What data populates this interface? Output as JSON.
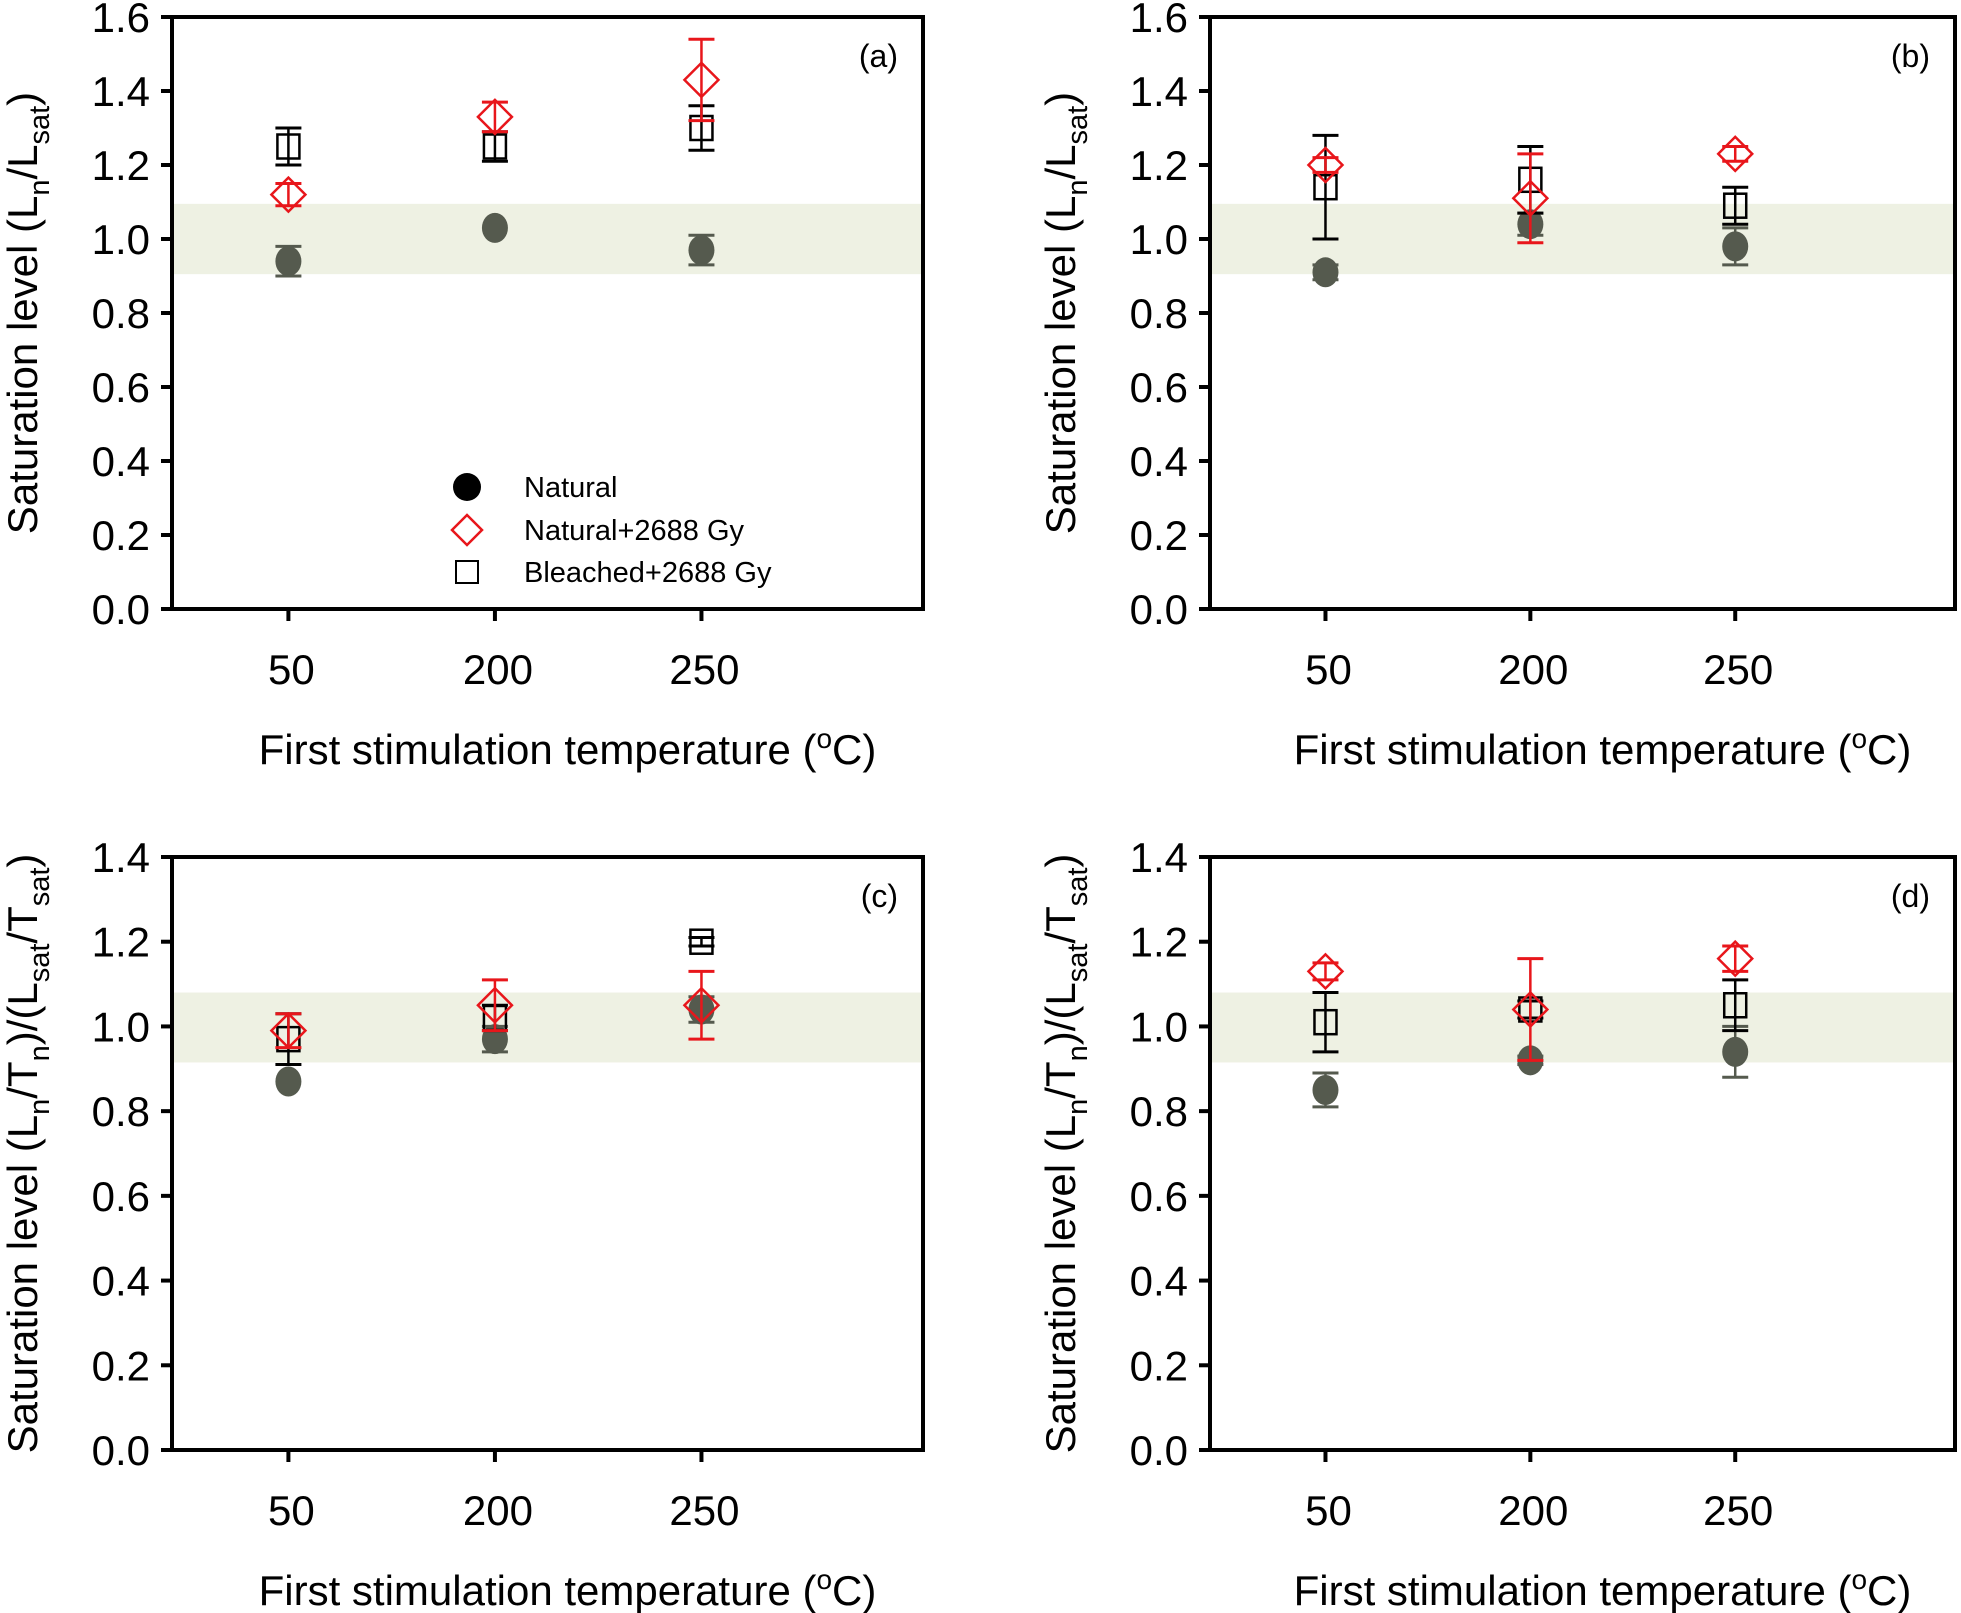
{
  "chart_data": [
    {
      "type": "scatter",
      "panel_label": "(a)",
      "xlabel": "First stimulation temperature (°C)",
      "xlabel_parts": {
        "pre": "First stimulation temperature (",
        "sup": "o",
        "post": "C)"
      },
      "ylabel_parts": [
        {
          "t": "Saturation level (L"
        },
        {
          "sub": "n"
        },
        {
          "t": "/L"
        },
        {
          "sub": "sat"
        },
        {
          "t": ")"
        }
      ],
      "ylabel": "Saturation level (Ln/Lsat)",
      "categories": [
        "50",
        "200",
        "250"
      ],
      "ylim": [
        0,
        1.6
      ],
      "yticks": [
        "0.0",
        "0.2",
        "0.4",
        "0.6",
        "0.8",
        "1.0",
        "1.2",
        "1.4",
        "1.6"
      ],
      "band": [
        0.905,
        1.095
      ],
      "legend": {
        "placement": "bottom-center",
        "show": true
      },
      "series": [
        {
          "name": "Natural",
          "marker": "circle",
          "values": [
            0.94,
            1.03,
            0.97
          ],
          "errors": [
            0.04,
            0.0,
            0.04
          ]
        },
        {
          "name": "Natural+2688 Gy",
          "marker": "diamond",
          "values": [
            1.12,
            1.33,
            1.43
          ],
          "errors": [
            0.03,
            0.04,
            0.11
          ]
        },
        {
          "name": "Bleached+2688 Gy",
          "marker": "square",
          "values": [
            1.25,
            1.25,
            1.3
          ],
          "errors": [
            0.05,
            0.04,
            0.06
          ]
        }
      ]
    },
    {
      "type": "scatter",
      "panel_label": "(b)",
      "xlabel": "First stimulation temperature (°C)",
      "xlabel_parts": {
        "pre": "First stimulation temperature (",
        "sup": "o",
        "post": "C)"
      },
      "ylabel_parts": [
        {
          "t": "Saturation level (L"
        },
        {
          "sub": "n"
        },
        {
          "t": "/L"
        },
        {
          "sub": "sat"
        },
        {
          "t": ")"
        }
      ],
      "ylabel": "Saturation level (Ln/Lsat)",
      "categories": [
        "50",
        "200",
        "250"
      ],
      "ylim": [
        0,
        1.6
      ],
      "yticks": [
        "0.0",
        "0.2",
        "0.4",
        "0.6",
        "0.8",
        "1.0",
        "1.2",
        "1.4",
        "1.6"
      ],
      "band": [
        0.905,
        1.095
      ],
      "legend": {
        "show": false
      },
      "series": [
        {
          "name": "Natural",
          "marker": "circle",
          "values": [
            0.91,
            1.04,
            0.98
          ],
          "errors": [
            0.02,
            0.03,
            0.05
          ]
        },
        {
          "name": "Natural+2688 Gy",
          "marker": "diamond",
          "values": [
            1.2,
            1.11,
            1.23
          ],
          "errors": [
            0.02,
            0.12,
            0.02
          ]
        },
        {
          "name": "Bleached+2688 Gy",
          "marker": "square",
          "values": [
            1.14,
            1.16,
            1.09
          ],
          "errors": [
            0.14,
            0.09,
            0.05
          ]
        }
      ]
    },
    {
      "type": "scatter",
      "panel_label": "(c)",
      "xlabel": "First stimulation temperature (°C)",
      "xlabel_parts": {
        "pre": "First stimulation temperature (",
        "sup": "o",
        "post": "C)"
      },
      "ylabel_parts": [
        {
          "t": "Saturation level (L"
        },
        {
          "sub": "n"
        },
        {
          "t": "/T"
        },
        {
          "sub": "n"
        },
        {
          "t": ")/(L"
        },
        {
          "sub": "sat"
        },
        {
          "t": "/T"
        },
        {
          "sub": "sat"
        },
        {
          "t": ")"
        }
      ],
      "ylabel": "Saturation level (Ln/Tn)/(Lsat/Tsat)",
      "categories": [
        "50",
        "200",
        "250"
      ],
      "ylim": [
        0,
        1.4
      ],
      "yticks": [
        "0.0",
        "0.2",
        "0.4",
        "0.6",
        "0.8",
        "1.0",
        "1.2",
        "1.4"
      ],
      "band": [
        0.915,
        1.08
      ],
      "legend": {
        "show": false
      },
      "series": [
        {
          "name": "Natural",
          "marker": "circle",
          "values": [
            0.87,
            0.97,
            1.04
          ],
          "errors": [
            0.0,
            0.03,
            0.03
          ]
        },
        {
          "name": "Natural+2688 Gy",
          "marker": "diamond",
          "values": [
            0.99,
            1.05,
            1.05
          ],
          "errors": [
            0.04,
            0.06,
            0.08
          ]
        },
        {
          "name": "Bleached+2688 Gy",
          "marker": "square",
          "values": [
            0.97,
            1.02,
            1.2
          ],
          "errors": [
            0.06,
            0.03,
            0.01
          ]
        }
      ]
    },
    {
      "type": "scatter",
      "panel_label": "(d)",
      "xlabel": "First stimulation temperature (°C)",
      "xlabel_parts": {
        "pre": "First stimulation temperature (",
        "sup": "o",
        "post": "C)"
      },
      "ylabel_parts": [
        {
          "t": "Saturation level (L"
        },
        {
          "sub": "n"
        },
        {
          "t": "/T"
        },
        {
          "sub": "n"
        },
        {
          "t": ")/(L"
        },
        {
          "sub": "sat"
        },
        {
          "t": "/T"
        },
        {
          "sub": "sat"
        },
        {
          "t": ")"
        }
      ],
      "ylabel": "Saturation level (Ln/Tn)/(Lsat/Tsat)",
      "categories": [
        "50",
        "200",
        "250"
      ],
      "ylim": [
        0,
        1.4
      ],
      "yticks": [
        "0.0",
        "0.2",
        "0.4",
        "0.6",
        "0.8",
        "1.0",
        "1.2",
        "1.4"
      ],
      "band": [
        0.915,
        1.08
      ],
      "legend": {
        "show": false
      },
      "series": [
        {
          "name": "Natural",
          "marker": "circle",
          "values": [
            0.85,
            0.92,
            0.94
          ],
          "errors": [
            0.04,
            0.01,
            0.06
          ]
        },
        {
          "name": "Natural+2688 Gy",
          "marker": "diamond",
          "values": [
            1.13,
            1.04,
            1.16
          ],
          "errors": [
            0.02,
            0.12,
            0.03
          ]
        },
        {
          "name": "Bleached+2688 Gy",
          "marker": "square",
          "values": [
            1.01,
            1.04,
            1.05
          ],
          "errors": [
            0.07,
            0.02,
            0.06
          ]
        }
      ]
    }
  ],
  "colors": {
    "natural": "#555a4e",
    "natural_legend": "#000000",
    "irradiated": "#e8161b",
    "bleached": "#000000",
    "band": "#eef1e3",
    "axis": "#000000"
  }
}
